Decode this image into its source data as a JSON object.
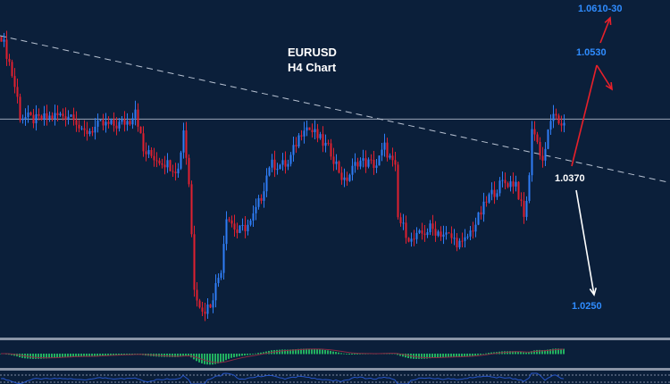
{
  "chart_data": {
    "type": "candlestick",
    "title": "EURUSD",
    "subtitle": "H4 Chart",
    "ylim": [
      1.022,
      1.056
    ],
    "colors": {
      "up": "#2f7df6",
      "down": "#e02030",
      "background": "#0b1f3a",
      "hist": "#22b060",
      "signal": "#8a2a45",
      "osc": "#2856c8"
    },
    "path": [
      [
        0,
        1.0524
      ],
      [
        3,
        1.0497
      ],
      [
        6,
        1.0461
      ],
      [
        7,
        1.0443
      ],
      [
        13,
        1.0439
      ],
      [
        20,
        1.0443
      ],
      [
        27,
        1.0445
      ],
      [
        30,
        1.0425
      ],
      [
        37,
        1.0434
      ],
      [
        43,
        1.0434
      ],
      [
        48,
        1.0439
      ],
      [
        50,
        1.0452
      ],
      [
        53,
        1.0407
      ],
      [
        60,
        1.0398
      ],
      [
        66,
        1.0389
      ],
      [
        68,
        1.043
      ],
      [
        70,
        1.0376
      ],
      [
        72,
        1.0272
      ],
      [
        75,
        1.0245
      ],
      [
        78,
        1.0254
      ],
      [
        82,
        1.029
      ],
      [
        84,
        1.0344
      ],
      [
        88,
        1.0326
      ],
      [
        93,
        1.0335
      ],
      [
        97,
        1.0362
      ],
      [
        100,
        1.0394
      ],
      [
        107,
        1.0394
      ],
      [
        110,
        1.0416
      ],
      [
        113,
        1.0434
      ],
      [
        117,
        1.0425
      ],
      [
        123,
        1.0407
      ],
      [
        128,
        1.0376
      ],
      [
        133,
        1.0398
      ],
      [
        140,
        1.0394
      ],
      [
        143,
        1.0412
      ],
      [
        147,
        1.0389
      ],
      [
        148,
        1.034
      ],
      [
        153,
        1.0317
      ],
      [
        160,
        1.033
      ],
      [
        167,
        1.0322
      ],
      [
        172,
        1.0313
      ],
      [
        177,
        1.0335
      ],
      [
        182,
        1.0362
      ],
      [
        187,
        1.0376
      ],
      [
        192,
        1.0376
      ],
      [
        195,
        1.034
      ],
      [
        197,
        1.038
      ],
      [
        198,
        1.0434
      ],
      [
        202,
        1.0398
      ],
      [
        204,
        1.0425
      ],
      [
        206,
        1.0448
      ],
      [
        208,
        1.043
      ],
      [
        210,
        1.0439
      ]
    ],
    "horizontal_level": 1.044,
    "trendline": {
      "from": [
        0,
        1.0524
      ],
      "to": [
        250,
        1.0376
      ]
    },
    "annotations": {
      "target_high": "1.0610-30",
      "target_mid": "1.0530",
      "pivot": "1.0370",
      "target_low": "1.0250"
    }
  }
}
